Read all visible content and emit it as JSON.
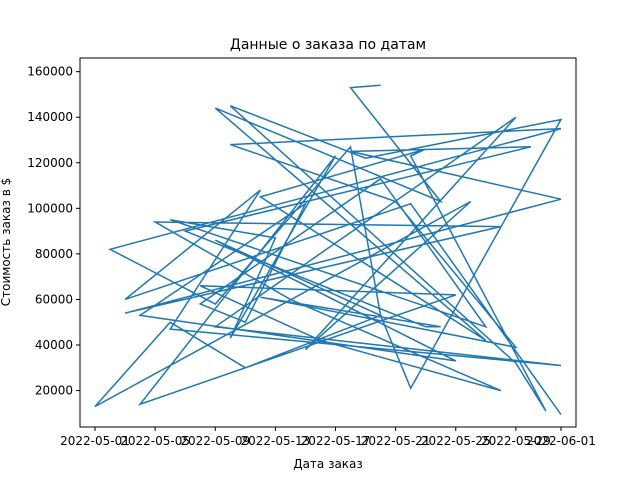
{
  "chart_data": {
    "type": "line",
    "title": "Данные о заказа по датам",
    "xlabel": "Дата заказ",
    "ylabel": "Стоимость заказ в $",
    "x_tick_labels": [
      "2022-05-01",
      "2022-05-05",
      "2022-05-09",
      "2022-05-13",
      "2022-05-17",
      "2022-05-21",
      "2022-05-25",
      "2022-05-29",
      "2022-06-01"
    ],
    "y_tick_labels": [
      "20000",
      "40000",
      "60000",
      "80000",
      "100000",
      "120000",
      "140000",
      "160000"
    ],
    "xlim": [
      "2022-04-30",
      "2022-06-02"
    ],
    "ylim": [
      4000,
      166000
    ],
    "grid": false,
    "series_color": "#1f77b4",
    "series": [
      {
        "x": [
          "2022-06-01",
          "2022-05-22",
          "2022-05-03",
          "2022-05-12",
          "2022-05-06",
          "2022-06-01",
          "2022-05-09",
          "2022-05-29",
          "2022-05-15",
          "2022-05-26",
          "2022-05-01",
          "2022-05-06",
          "2022-05-11",
          "2022-05-20",
          "2022-05-09",
          "2022-05-25",
          "2022-05-04",
          "2022-05-15",
          "2022-05-11",
          "2022-05-08",
          "2022-05-20",
          "2022-05-27",
          "2022-05-06",
          "2022-05-13",
          "2022-05-10",
          "2022-05-17",
          "2022-05-04",
          "2022-05-25",
          "2022-05-08",
          "2022-05-16",
          "2022-05-28",
          "2022-05-14",
          "2022-05-05",
          "2022-05-28",
          "2022-05-03",
          "2022-06-01",
          "2022-05-18",
          "2022-05-30",
          "2022-05-07",
          "2022-05-23",
          "2022-05-24",
          "2022-05-12",
          "2022-05-29",
          "2022-05-21",
          "2022-05-10",
          "2022-06-01",
          "2022-05-02",
          "2022-05-09",
          "2022-05-18",
          "2022-05-20",
          "2022-05-22",
          "2022-06-01",
          "2022-05-19",
          "2022-05-10",
          "2022-05-29",
          "2022-05-31",
          "2022-05-22",
          "2022-05-23",
          "2022-05-12",
          "2022-05-27",
          "2022-05-09",
          "2022-05-24",
          "2022-05-18",
          "2022-05-20"
        ],
        "values": [
          9500,
          102000,
          60000,
          108000,
          47000,
          31000,
          48000,
          140000,
          38000,
          103000,
          13000,
          50000,
          30000,
          53000,
          86000,
          33000,
          53000,
          102000,
          50000,
          58000,
          113000,
          48000,
          95000,
          87000,
          43000,
          123000,
          14000,
          62000,
          66000,
          42000,
          20000,
          60000,
          94000,
          92000,
          54000,
          104000,
          125000,
          127000,
          90000,
          48000,
          48000,
          61000,
          39000,
          103000,
          128000,
          135000,
          82000,
          58000,
          127000,
          53000,
          21000,
          139000,
          122000,
          145000,
          32000,
          11000,
          123000,
          126000,
          105000,
          42000,
          144000,
          103000,
          153000,
          154000
        ]
      }
    ]
  }
}
